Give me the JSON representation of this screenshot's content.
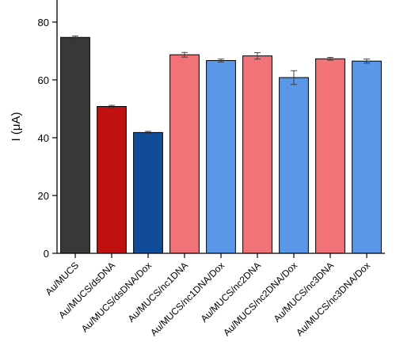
{
  "chart_data": {
    "type": "bar",
    "title": "",
    "xlabel": "",
    "ylabel": "I (μA)",
    "ylim": [
      0,
      86
    ],
    "yticks": [
      0,
      20,
      40,
      60,
      80
    ],
    "grid": false,
    "categories": [
      "Au/MUCS",
      "Au/MUCS/dsDNA",
      "Au/MUCS/dsDNA/Dox",
      "Au/MUCS/nc1DNA",
      "Au/MUCS/nc1DNA/Dox",
      "Au/MUCS/nc2DNA",
      "Au/MUCS/nc2DNA/Dox",
      "Au/MUCS/nc3DNA",
      "Au/MUCS/nc3DNA/Dox"
    ],
    "values": [
      74.7,
      50.8,
      41.8,
      68.7,
      66.7,
      68.3,
      60.8,
      67.3,
      66.5
    ],
    "errors": [
      0.5,
      0.4,
      0.4,
      0.8,
      0.5,
      1.1,
      2.4,
      0.5,
      0.7
    ],
    "colors": [
      "#383838",
      "#c0100f",
      "#104c97",
      "#f27377",
      "#5b97e8",
      "#f27377",
      "#5b97e8",
      "#f27377",
      "#5b97e8"
    ]
  }
}
